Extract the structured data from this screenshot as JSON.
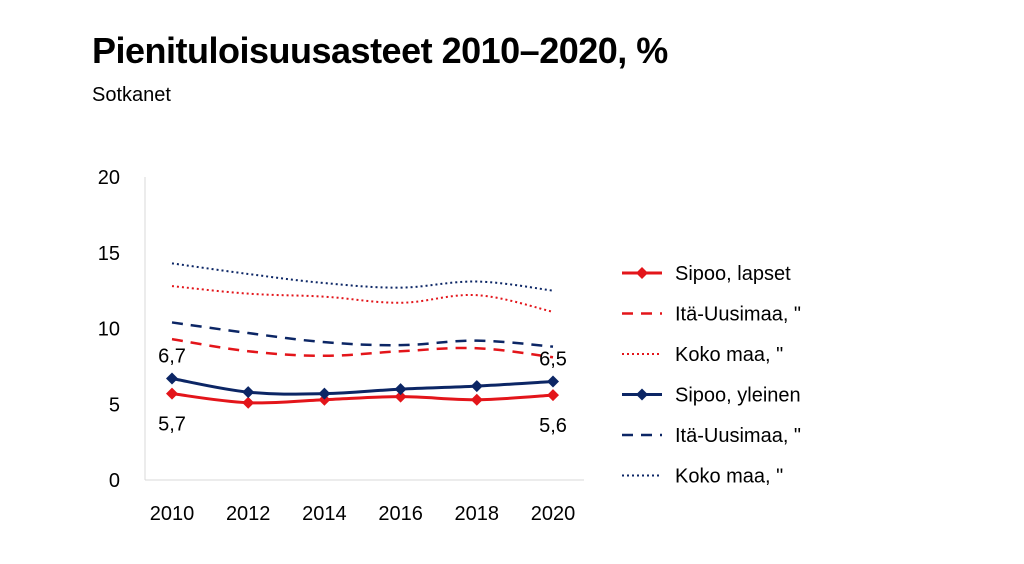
{
  "title": "Pienituloisuusasteet 2010–2020, %",
  "subtitle": "Sotkanet",
  "chart_data": {
    "type": "line",
    "title": "Pienituloisuusasteet 2010–2020, %",
    "subtitle": "Sotkanet",
    "x": [
      2010,
      2012,
      2014,
      2016,
      2018,
      2020
    ],
    "x_tick_labels": [
      "2010",
      "2012",
      "2014",
      "2016",
      "2018",
      "2020"
    ],
    "ylim": [
      0,
      20
    ],
    "y_ticks": [
      0,
      5,
      10,
      15,
      20
    ],
    "y_tick_labels": [
      "0",
      "5",
      "10",
      "15",
      "20"
    ],
    "grid": false,
    "legend_position": "right",
    "series": [
      {
        "name": "Sipoo, lapset",
        "values": [
          5.7,
          5.1,
          5.3,
          5.5,
          5.3,
          5.6
        ],
        "color": "#e3151a",
        "style": "solid",
        "marker": "diamond"
      },
      {
        "name": "Itä-Uusimaa, \"",
        "values": [
          9.3,
          8.5,
          8.2,
          8.5,
          8.7,
          8.1
        ],
        "color": "#e3151a",
        "style": "dashed",
        "marker": "none"
      },
      {
        "name": "Koko maa, \"",
        "values": [
          12.8,
          12.3,
          12.1,
          11.7,
          12.2,
          11.1
        ],
        "color": "#e3151a",
        "style": "dotted",
        "marker": "none"
      },
      {
        "name": "Sipoo, yleinen",
        "values": [
          6.7,
          5.8,
          5.7,
          6.0,
          6.2,
          6.5
        ],
        "color": "#0c2665",
        "style": "solid",
        "marker": "diamond"
      },
      {
        "name": "Itä-Uusimaa, \"",
        "values": [
          10.4,
          9.7,
          9.1,
          8.9,
          9.2,
          8.8
        ],
        "color": "#0c2665",
        "style": "dashed",
        "marker": "none"
      },
      {
        "name": "Koko maa, \"",
        "values": [
          14.3,
          13.6,
          13.0,
          12.7,
          13.1,
          12.5
        ],
        "color": "#0c2665",
        "style": "dotted",
        "marker": "none"
      }
    ],
    "data_labels": [
      {
        "text": "6,7",
        "series": 3,
        "index": 0,
        "placement": "above"
      },
      {
        "text": "6,5",
        "series": 3,
        "index": 5,
        "placement": "above"
      },
      {
        "text": "5,7",
        "series": 0,
        "index": 0,
        "placement": "below"
      },
      {
        "text": "5,6",
        "series": 0,
        "index": 5,
        "placement": "below"
      }
    ]
  }
}
